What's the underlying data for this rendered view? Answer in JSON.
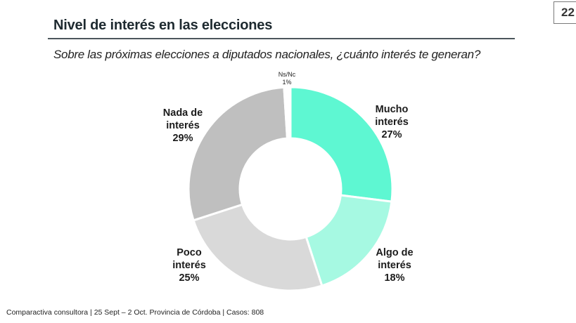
{
  "page": {
    "number": "22",
    "title": "Nivel de interés en las elecciones",
    "subtitle": "Sobre las próximas elecciones a diputados nacionales, ¿cuánto interés te generan?",
    "footer": "Comparactiva consultora | 25 Sept – 2 Oct. Provincia de Córdoba | Casos: 808"
  },
  "chart_data": {
    "type": "pie",
    "variant": "donut",
    "title": "Nivel de interés en las elecciones",
    "subtitle": "Sobre las próximas elecciones a diputados nacionales, ¿cuánto interés te generan?",
    "start": "top",
    "direction": "clockwise",
    "unit": "%",
    "slices": [
      {
        "key": "mucho",
        "label_lines": [
          "Mucho",
          "interés"
        ],
        "value": 27,
        "value_label": "27%",
        "color": "#5ef7d2"
      },
      {
        "key": "algo",
        "label_lines": [
          "Algo de",
          "interés"
        ],
        "value": 18,
        "value_label": "18%",
        "color": "#a6f9e2"
      },
      {
        "key": "poco",
        "label_lines": [
          "Poco",
          "interés"
        ],
        "value": 25,
        "value_label": "25%",
        "color": "#d9d9d9"
      },
      {
        "key": "nada",
        "label_lines": [
          "Nada de",
          "interés"
        ],
        "value": 29,
        "value_label": "29%",
        "color": "#bfbfbf"
      },
      {
        "key": "nsnc",
        "label_lines": [
          "Ns/Nc"
        ],
        "value": 1,
        "value_label": "1%",
        "color": "#ffffff"
      }
    ]
  }
}
